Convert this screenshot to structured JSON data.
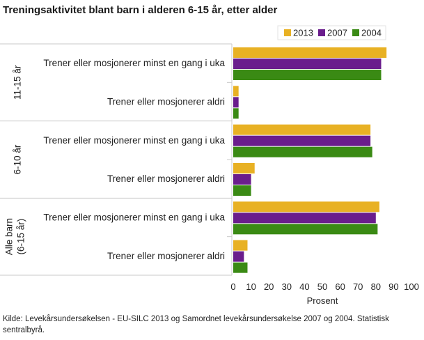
{
  "source": "Kilde: Levekårsundersøkelsen - EU-SILC 2013 og Samordnet levekårsundersøkelse 2007 og 2004. Statistisk sentralbyrå.",
  "chart_data": {
    "type": "bar",
    "orientation": "horizontal",
    "title": "Treningsaktivitet blant barn i alderen 6-15 år, etter alder",
    "xlabel": "Prosent",
    "xlim": [
      0,
      100
    ],
    "xticks": [
      0,
      10,
      20,
      30,
      40,
      50,
      60,
      70,
      80,
      90,
      100
    ],
    "grid": false,
    "legend_position": "top-right",
    "groups": [
      {
        "label": [
          "11-15 år"
        ],
        "categories": [
          "Trener eller mosjonerer minst en gang i uka",
          "Trener eller mosjonerer aldri"
        ]
      },
      {
        "label": [
          "6-10 år"
        ],
        "categories": [
          "Trener eller mosjonerer minst en gang i uka",
          "Trener eller mosjonerer aldri"
        ]
      },
      {
        "label": [
          "Alle barn",
          "(6-15 år)"
        ],
        "categories": [
          "Trener eller mosjonerer minst en gang i uka",
          "Trener eller mosjonerer aldri"
        ]
      }
    ],
    "series": [
      {
        "name": "2013",
        "color": "#e8b124",
        "values": [
          86,
          3,
          77,
          12,
          82,
          8
        ]
      },
      {
        "name": "2007",
        "color": "#6a1d8c",
        "values": [
          83,
          3,
          77,
          10,
          80,
          6
        ]
      },
      {
        "name": "2004",
        "color": "#3a8a14",
        "values": [
          83,
          3,
          78,
          10,
          81,
          8
        ]
      }
    ]
  }
}
